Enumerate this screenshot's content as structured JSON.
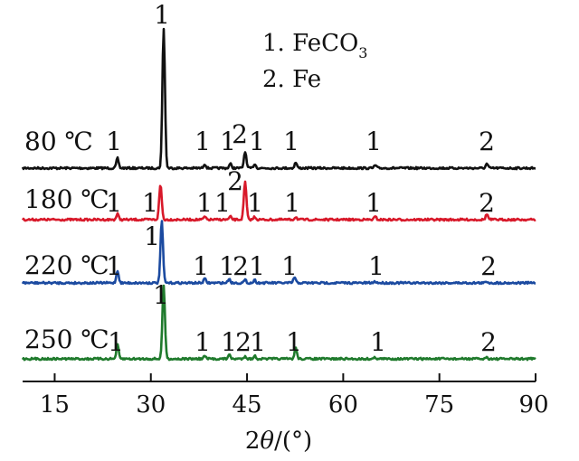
{
  "chart_data": {
    "type": "line",
    "xlabel_main": "2",
    "xlabel_theta": "θ",
    "xlabel_unit": "/(°)",
    "xlim": [
      10,
      90
    ],
    "xticks": [
      15,
      30,
      45,
      60,
      75,
      90
    ],
    "xtick_labels": [
      "15",
      "30",
      "45",
      "60",
      "75",
      "90"
    ],
    "legend": {
      "placement": "top-center",
      "items": [
        {
          "num": "1.",
          "formula": "FeCO",
          "sub": "3"
        },
        {
          "num": "2.",
          "formula": "Fe",
          "sub": ""
        }
      ]
    },
    "series": [
      {
        "name": "80 ℃",
        "color": "#111111",
        "peaks": [
          {
            "x": 24.8,
            "h": 0.07,
            "label": "1"
          },
          {
            "x": 32.0,
            "h": 1.0,
            "label": "1"
          },
          {
            "x": 38.4,
            "h": 0.03,
            "label": "1"
          },
          {
            "x": 42.4,
            "h": 0.03,
            "label": "1"
          },
          {
            "x": 44.7,
            "h": 0.12,
            "label": "2"
          },
          {
            "x": 46.2,
            "h": 0.03,
            "label": "1"
          },
          {
            "x": 52.6,
            "h": 0.04,
            "label": "1"
          },
          {
            "x": 65.0,
            "h": 0.02,
            "label": "1"
          },
          {
            "x": 82.4,
            "h": 0.03,
            "label": "2"
          }
        ]
      },
      {
        "name": "180 ℃",
        "color": "#d8192a",
        "peaks": [
          {
            "x": 24.8,
            "h": 0.04,
            "label": "1"
          },
          {
            "x": 31.5,
            "h": 0.25,
            "label": "1"
          },
          {
            "x": 38.4,
            "h": 0.02,
            "label": "1"
          },
          {
            "x": 42.4,
            "h": 0.02,
            "label": "1"
          },
          {
            "x": 44.7,
            "h": 0.27,
            "label": "2"
          },
          {
            "x": 46.2,
            "h": 0.02,
            "label": "1"
          },
          {
            "x": 52.6,
            "h": 0.02,
            "label": "1"
          },
          {
            "x": 65.0,
            "h": 0.02,
            "label": "1"
          },
          {
            "x": 82.4,
            "h": 0.04,
            "label": "2"
          }
        ]
      },
      {
        "name": "220 ℃",
        "color": "#1b4aa0",
        "peaks": [
          {
            "x": 24.8,
            "h": 0.09,
            "label": "1"
          },
          {
            "x": 31.7,
            "h": 0.44,
            "label": "1"
          },
          {
            "x": 38.4,
            "h": 0.03,
            "label": "1"
          },
          {
            "x": 42.2,
            "h": 0.03,
            "label": "1"
          },
          {
            "x": 44.7,
            "h": 0.02,
            "label": "2"
          },
          {
            "x": 46.2,
            "h": 0.02,
            "label": "1"
          },
          {
            "x": 52.4,
            "h": 0.04,
            "label": "1"
          },
          {
            "x": 65.0,
            "h": 0.01,
            "label": "1"
          },
          {
            "x": 82.4,
            "h": 0.01,
            "label": "2"
          }
        ]
      },
      {
        "name": "250 ℃",
        "color": "#1f7a2c",
        "peaks": [
          {
            "x": 24.8,
            "h": 0.1,
            "label": "1"
          },
          {
            "x": 32.0,
            "h": 0.52,
            "label": "1"
          },
          {
            "x": 38.4,
            "h": 0.02,
            "label": "1"
          },
          {
            "x": 42.2,
            "h": 0.03,
            "label": "1"
          },
          {
            "x": 44.7,
            "h": 0.02,
            "label": "2"
          },
          {
            "x": 46.2,
            "h": 0.02,
            "label": "1"
          },
          {
            "x": 52.6,
            "h": 0.08,
            "label": "1"
          },
          {
            "x": 65.0,
            "h": 0.01,
            "label": "1"
          },
          {
            "x": 82.4,
            "h": 0.01,
            "label": "2"
          }
        ]
      }
    ]
  }
}
